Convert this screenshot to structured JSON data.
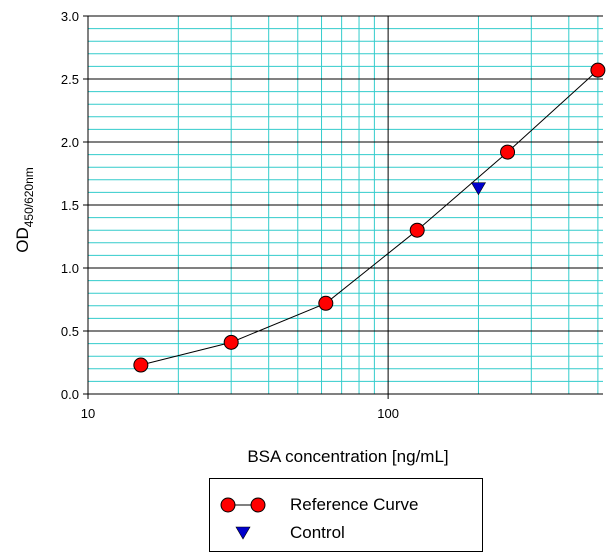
{
  "chart_data": {
    "type": "scatter",
    "xlabel": "BSA concentration [ng/mL]",
    "ylabel": "OD",
    "ylabel_subscript": "450/620nm",
    "x_scale": "log",
    "xlim": [
      10,
      520
    ],
    "ylim": [
      0,
      3.0
    ],
    "x_ticks": [
      "10",
      "100"
    ],
    "y_ticks": [
      "0.0",
      "0.5",
      "1.0",
      "1.5",
      "2.0",
      "2.5",
      "3.0"
    ],
    "grid": true,
    "legend_position": "bottom-center",
    "series": [
      {
        "name": "Reference Curve",
        "marker": "circle",
        "line": true,
        "color": "#ff0000",
        "x": [
          15,
          30,
          62,
          125,
          250,
          500
        ],
        "y": [
          0.23,
          0.41,
          0.72,
          1.3,
          1.92,
          2.57
        ]
      },
      {
        "name": "Control",
        "marker": "triangle-down",
        "line": false,
        "color": "#0000cc",
        "x": [
          200
        ],
        "y": [
          1.63
        ]
      }
    ]
  },
  "colors": {
    "minor_grid": "#33cccc",
    "major_grid": "#000000",
    "line": "#000000"
  }
}
